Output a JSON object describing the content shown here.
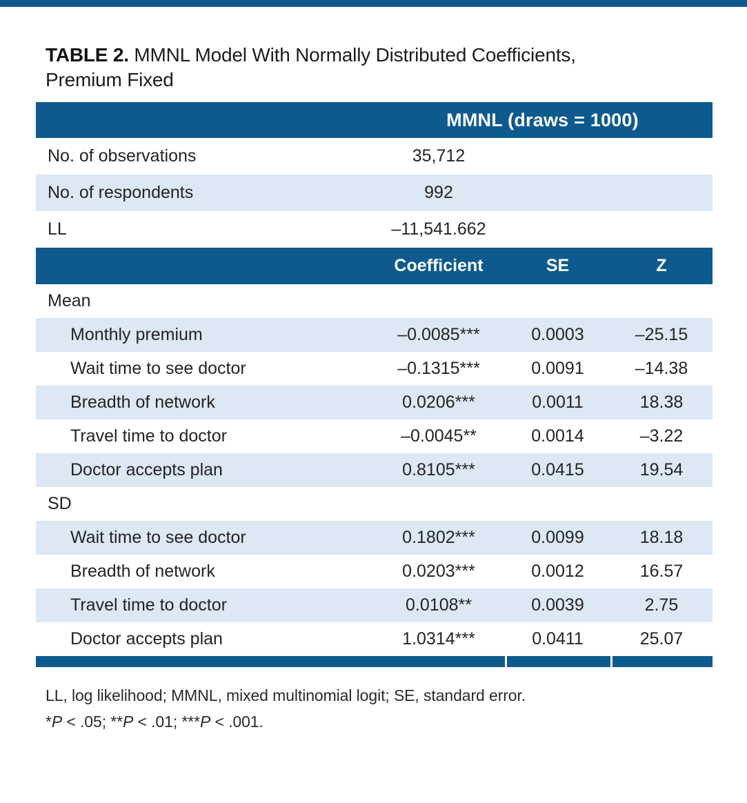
{
  "title": {
    "label": "TABLE 2.",
    "text": " MMNL Model With Normally Distributed Coefficients,",
    "line2": "Premium Fixed"
  },
  "table": {
    "model_header": "MMNL (draws = 1000)",
    "info_rows": [
      {
        "label": "No. of observations",
        "value": "35,712"
      },
      {
        "label": "No. of respondents",
        "value": "992"
      },
      {
        "label": "LL",
        "value": "–11,541.662"
      }
    ],
    "columns": [
      "Coefficient",
      "SE",
      "Z"
    ],
    "sections": [
      {
        "name": "Mean",
        "rows": [
          {
            "label": "Monthly premium",
            "coefficient": "–0.0085***",
            "se": "0.0003",
            "z": "–25.15"
          },
          {
            "label": "Wait time to see doctor",
            "coefficient": "–0.1315***",
            "se": "0.0091",
            "z": "–14.38"
          },
          {
            "label": "Breadth of network",
            "coefficient": "0.0206***",
            "se": "0.0011",
            "z": "18.38"
          },
          {
            "label": "Travel time to doctor",
            "coefficient": "–0.0045**",
            "se": "0.0014",
            "z": "–3.22"
          },
          {
            "label": "Doctor accepts plan",
            "coefficient": "0.8105***",
            "se": "0.0415",
            "z": "19.54"
          }
        ]
      },
      {
        "name": "SD",
        "rows": [
          {
            "label": "Wait time to see doctor",
            "coefficient": "0.1802***",
            "se": "0.0099",
            "z": "18.18"
          },
          {
            "label": "Breadth of network",
            "coefficient": "0.0203***",
            "se": "0.0012",
            "z": "16.57"
          },
          {
            "label": "Travel time to doctor",
            "coefficient": "0.0108**",
            "se": "0.0039",
            "z": "2.75"
          },
          {
            "label": "Doctor accepts plan",
            "coefficient": "1.0314***",
            "se": "0.0411",
            "z": "25.07"
          }
        ]
      }
    ]
  },
  "footnotes": {
    "abbreviations": "LL, log likelihood; MMNL, mixed multinomial logit; SE, standard error.",
    "significance_parts": [
      {
        "t": "*",
        "i": false
      },
      {
        "t": "P",
        "i": true
      },
      {
        "t": " < .05; **",
        "i": false
      },
      {
        "t": "P",
        "i": true
      },
      {
        "t": " < .01; ***",
        "i": false
      },
      {
        "t": "P",
        "i": true
      },
      {
        "t": " < .001.",
        "i": false
      }
    ]
  },
  "colors": {
    "header_blue": "#0d5a8e",
    "row_light_blue": "#dce8f3"
  }
}
